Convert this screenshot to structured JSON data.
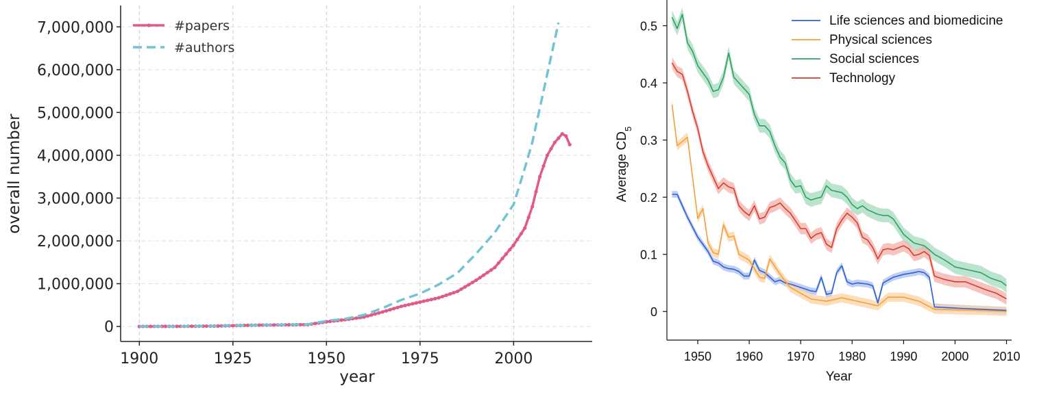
{
  "chart_data": [
    {
      "type": "line",
      "title": "",
      "xlabel": "year",
      "ylabel": "overall number",
      "xlim": [
        1895,
        2021
      ],
      "ylim": [
        -350000,
        7500000
      ],
      "xticks": [
        1900,
        1925,
        1950,
        1975,
        2000
      ],
      "xtick_labels": [
        "1900",
        "1925",
        "1950",
        "1975",
        "2000"
      ],
      "yticks": [
        0,
        1000000,
        2000000,
        3000000,
        4000000,
        5000000,
        6000000,
        7000000
      ],
      "ytick_labels": [
        "0",
        "1,000,000",
        "2,000,000",
        "3,000,000",
        "4,000,000",
        "5,000,000",
        "6,000,000",
        "7,000,000"
      ],
      "grid": true,
      "legend_position": "top-left",
      "series": [
        {
          "name": "#papers",
          "color": "#e05a87",
          "style": "solid-markers",
          "x": [
            1900,
            1905,
            1910,
            1915,
            1920,
            1925,
            1930,
            1935,
            1940,
            1945,
            1950,
            1955,
            1960,
            1965,
            1970,
            1975,
            1980,
            1985,
            1990,
            1995,
            2000,
            2003,
            2005,
            2007,
            2009,
            2011,
            2012,
            2013,
            2014,
            2015
          ],
          "y": [
            2000,
            3000,
            4000,
            6000,
            10000,
            20000,
            30000,
            35000,
            40000,
            45000,
            110000,
            160000,
            220000,
            340000,
            470000,
            570000,
            670000,
            820000,
            1080000,
            1380000,
            1900000,
            2300000,
            2800000,
            3500000,
            4000000,
            4300000,
            4400000,
            4500000,
            4450000,
            4250000
          ]
        },
        {
          "name": "#authors",
          "color": "#72c3d3",
          "style": "dashed",
          "x": [
            1900,
            1905,
            1910,
            1915,
            1920,
            1925,
            1930,
            1935,
            1940,
            1945,
            1950,
            1955,
            1960,
            1965,
            1970,
            1975,
            1980,
            1985,
            1990,
            1995,
            2000,
            2003,
            2005,
            2007,
            2009,
            2011,
            2012
          ],
          "y": [
            3000,
            4000,
            5000,
            7000,
            12000,
            20000,
            30000,
            38000,
            45000,
            50000,
            130000,
            180000,
            270000,
            430000,
            620000,
            770000,
            980000,
            1250000,
            1700000,
            2200000,
            2850000,
            3700000,
            4300000,
            5100000,
            5900000,
            6700000,
            7100000
          ]
        }
      ]
    },
    {
      "type": "line",
      "title": "",
      "xlabel": "Year",
      "ylabel": "Average CD",
      "ylabel_subscript": "5",
      "xlim": [
        1944,
        2011
      ],
      "ylim": [
        -0.05,
        0.545
      ],
      "xticks": [
        1950,
        1960,
        1970,
        1980,
        1990,
        2000,
        2010
      ],
      "xtick_labels": [
        "1950",
        "1960",
        "1970",
        "1980",
        "1990",
        "2000",
        "2010"
      ],
      "yticks": [
        0,
        0.1,
        0.2,
        0.3,
        0.4,
        0.5
      ],
      "ytick_labels": [
        "0",
        "0.1",
        "0.2",
        "0.3",
        "0.4",
        "0.5"
      ],
      "grid": false,
      "legend_position": "top-right",
      "series": [
        {
          "name": "Life sciences and biomedicine",
          "color": "#2f5fd1",
          "band": "#a9bdf0",
          "band_width": 0.006,
          "x": [
            1945,
            1946,
            1948,
            1950,
            1952,
            1953,
            1954,
            1955,
            1956,
            1957,
            1958,
            1959,
            1960,
            1961,
            1962,
            1963,
            1964,
            1965,
            1966,
            1967,
            1968,
            1970,
            1972,
            1973,
            1974,
            1975,
            1976,
            1977,
            1978,
            1979,
            1980,
            1981,
            1983,
            1984,
            1985,
            1986,
            1987,
            1988,
            1990,
            1992,
            1993,
            1994,
            1995,
            1996,
            2000,
            2005,
            2010
          ],
          "y": [
            0.205,
            0.205,
            0.165,
            0.13,
            0.105,
            0.088,
            0.085,
            0.078,
            0.075,
            0.074,
            0.07,
            0.062,
            0.062,
            0.09,
            0.072,
            0.068,
            0.06,
            0.052,
            0.055,
            0.05,
            0.048,
            0.042,
            0.036,
            0.035,
            0.06,
            0.03,
            0.032,
            0.068,
            0.08,
            0.052,
            0.048,
            0.05,
            0.048,
            0.045,
            0.015,
            0.05,
            0.055,
            0.06,
            0.065,
            0.068,
            0.07,
            0.068,
            0.06,
            0.008,
            0.006,
            0.004,
            0.002
          ]
        },
        {
          "name": "Physical sciences",
          "color": "#f5a03c",
          "band": "#fbd3a4",
          "band_width": 0.008,
          "x": [
            1945,
            1946,
            1948,
            1950,
            1951,
            1952,
            1953,
            1954,
            1955,
            1956,
            1957,
            1958,
            1960,
            1962,
            1963,
            1964,
            1966,
            1968,
            1970,
            1972,
            1975,
            1978,
            1980,
            1985,
            1987,
            1990,
            1993,
            1996,
            2000,
            2005,
            2010
          ],
          "y": [
            0.362,
            0.29,
            0.305,
            0.163,
            0.18,
            0.12,
            0.103,
            0.1,
            0.152,
            0.13,
            0.132,
            0.1,
            0.09,
            0.06,
            0.058,
            0.092,
            0.065,
            0.042,
            0.032,
            0.022,
            0.018,
            0.024,
            0.02,
            0.01,
            0.025,
            0.025,
            0.018,
            0.004,
            0.003,
            0.002,
            0.0
          ]
        },
        {
          "name": "Social sciences",
          "color": "#2ba163",
          "band": "#a5d9bc",
          "band_width": 0.012,
          "x": [
            1945,
            1946,
            1947,
            1948,
            1949,
            1950,
            1952,
            1953,
            1954,
            1955,
            1956,
            1957,
            1958,
            1959,
            1960,
            1961,
            1962,
            1963,
            1964,
            1965,
            1966,
            1967,
            1968,
            1969,
            1970,
            1971,
            1972,
            1973,
            1974,
            1975,
            1976,
            1977,
            1978,
            1979,
            1980,
            1981,
            1982,
            1983,
            1985,
            1986,
            1987,
            1988,
            1990,
            1992,
            1994,
            1995,
            1996,
            1998,
            2000,
            2003,
            2005,
            2007,
            2009,
            2010
          ],
          "y": [
            0.515,
            0.495,
            0.52,
            0.47,
            0.455,
            0.43,
            0.405,
            0.385,
            0.388,
            0.41,
            0.452,
            0.41,
            0.4,
            0.39,
            0.38,
            0.345,
            0.325,
            0.325,
            0.315,
            0.29,
            0.27,
            0.26,
            0.23,
            0.218,
            0.22,
            0.2,
            0.195,
            0.198,
            0.2,
            0.22,
            0.212,
            0.21,
            0.208,
            0.2,
            0.187,
            0.18,
            0.185,
            0.178,
            0.17,
            0.168,
            0.168,
            0.162,
            0.135,
            0.12,
            0.115,
            0.108,
            0.1,
            0.09,
            0.078,
            0.072,
            0.068,
            0.058,
            0.052,
            0.045
          ]
        },
        {
          "name": "Technology",
          "color": "#d93b2e",
          "band": "#f3b0aa",
          "band_width": 0.01,
          "x": [
            1945,
            1946,
            1947,
            1948,
            1949,
            1950,
            1951,
            1952,
            1953,
            1954,
            1955,
            1956,
            1957,
            1958,
            1959,
            1960,
            1961,
            1962,
            1963,
            1964,
            1965,
            1966,
            1967,
            1968,
            1970,
            1971,
            1972,
            1973,
            1974,
            1975,
            1976,
            1977,
            1978,
            1979,
            1980,
            1981,
            1982,
            1983,
            1984,
            1985,
            1986,
            1987,
            1988,
            1990,
            1991,
            1992,
            1993,
            1994,
            1995,
            1996,
            1998,
            2000,
            2002,
            2004,
            2006,
            2008,
            2010
          ],
          "y": [
            0.435,
            0.42,
            0.415,
            0.385,
            0.35,
            0.32,
            0.28,
            0.255,
            0.235,
            0.215,
            0.225,
            0.218,
            0.215,
            0.185,
            0.175,
            0.168,
            0.185,
            0.162,
            0.165,
            0.182,
            0.185,
            0.19,
            0.18,
            0.172,
            0.145,
            0.145,
            0.128,
            0.135,
            0.138,
            0.118,
            0.112,
            0.145,
            0.16,
            0.172,
            0.165,
            0.155,
            0.13,
            0.125,
            0.112,
            0.092,
            0.108,
            0.11,
            0.108,
            0.115,
            0.11,
            0.098,
            0.1,
            0.105,
            0.098,
            0.062,
            0.056,
            0.052,
            0.052,
            0.045,
            0.038,
            0.032,
            0.022
          ]
        }
      ]
    }
  ]
}
